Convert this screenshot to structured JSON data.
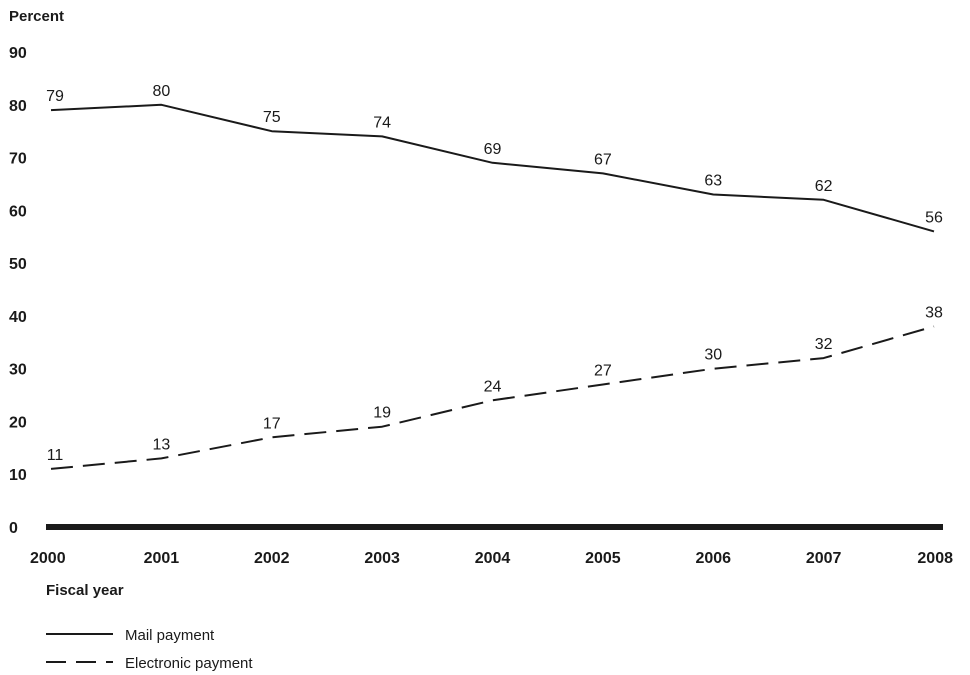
{
  "chart_data": {
    "type": "line",
    "title": "",
    "ylabel": "Percent",
    "xlabel": "Fiscal year",
    "x": [
      "2000",
      "2001",
      "2002",
      "2003",
      "2004",
      "2005",
      "2006",
      "2007",
      "2008"
    ],
    "yticks": [
      "0",
      "10",
      "20",
      "30",
      "40",
      "50",
      "60",
      "70",
      "80",
      "90"
    ],
    "ylim": [
      0,
      90
    ],
    "grid": false,
    "legend_position": "bottom-left",
    "series": [
      {
        "name": "Mail payment",
        "style": "solid",
        "values": [
          79,
          80,
          75,
          74,
          69,
          67,
          63,
          62,
          56
        ]
      },
      {
        "name": "Electronic payment",
        "style": "dashed",
        "values": [
          11,
          13,
          17,
          19,
          24,
          27,
          30,
          32,
          38
        ]
      }
    ],
    "colors": {
      "line": "#1a1a1a",
      "axis": "#1a1a1a"
    }
  }
}
